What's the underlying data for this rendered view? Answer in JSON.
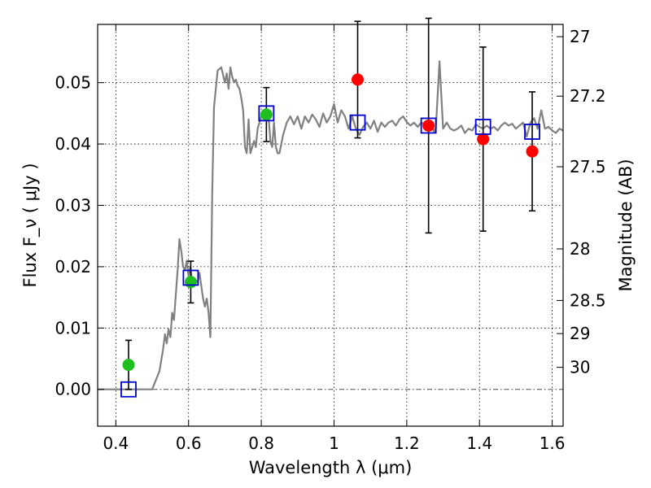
{
  "chart_data": {
    "type": "scatter",
    "xlabel": "Wavelength λ (μm)",
    "ylabel": "Flux F_ν ( μJy )",
    "y2label": "Magnitude (AB)",
    "xlim": [
      0.35,
      1.63
    ],
    "ylim": [
      -0.006,
      0.0595
    ],
    "grid": true,
    "xticks": [
      0.4,
      0.6,
      0.8,
      1,
      1.2,
      1.4,
      1.6
    ],
    "xtick_labels": [
      "0.4",
      "0.6",
      "0.8",
      "1",
      "1.2",
      "1.4",
      "1.6"
    ],
    "yticks": [
      0.0,
      0.01,
      0.02,
      0.03,
      0.04,
      0.05
    ],
    "ytick_labels": [
      "0.00",
      "0.01",
      "0.02",
      "0.03",
      "0.04",
      "0.05"
    ],
    "mag_ticks": [
      {
        "label": "27",
        "flux": 0.0575
      },
      {
        "label": "27.2",
        "flux": 0.0478
      },
      {
        "label": "27.5",
        "flux": 0.0363
      },
      {
        "label": "28",
        "flux": 0.0229
      },
      {
        "label": "28.5",
        "flux": 0.0145
      },
      {
        "label": "29",
        "flux": 0.0091
      },
      {
        "label": "30",
        "flux": 0.0036
      }
    ],
    "sed_model": {
      "color": "#808080",
      "x": [
        0.35,
        0.49,
        0.5,
        0.52,
        0.53,
        0.535,
        0.54,
        0.545,
        0.55,
        0.555,
        0.56,
        0.565,
        0.57,
        0.575,
        0.58,
        0.585,
        0.59,
        0.595,
        0.6,
        0.605,
        0.61,
        0.615,
        0.62,
        0.625,
        0.63,
        0.635,
        0.64,
        0.645,
        0.65,
        0.655,
        0.66,
        0.665,
        0.67,
        0.675,
        0.68,
        0.69,
        0.7,
        0.705,
        0.71,
        0.715,
        0.72,
        0.725,
        0.73,
        0.735,
        0.74,
        0.745,
        0.75,
        0.755,
        0.76,
        0.765,
        0.77,
        0.78,
        0.785,
        0.79,
        0.8,
        0.81,
        0.82,
        0.825,
        0.83,
        0.835,
        0.84,
        0.845,
        0.85,
        0.86,
        0.87,
        0.88,
        0.89,
        0.9,
        0.91,
        0.92,
        0.93,
        0.94,
        0.95,
        0.96,
        0.97,
        0.98,
        0.99,
        1.0,
        1.01,
        1.02,
        1.03,
        1.04,
        1.05,
        1.06,
        1.07,
        1.08,
        1.09,
        1.1,
        1.11,
        1.12,
        1.13,
        1.14,
        1.15,
        1.16,
        1.17,
        1.18,
        1.19,
        1.2,
        1.21,
        1.22,
        1.23,
        1.24,
        1.25,
        1.26,
        1.265,
        1.27,
        1.275,
        1.28,
        1.29,
        1.3,
        1.31,
        1.32,
        1.33,
        1.34,
        1.35,
        1.36,
        1.37,
        1.38,
        1.39,
        1.4,
        1.41,
        1.42,
        1.43,
        1.44,
        1.45,
        1.46,
        1.47,
        1.48,
        1.49,
        1.5,
        1.51,
        1.52,
        1.53,
        1.54,
        1.55,
        1.56,
        1.57,
        1.58,
        1.59,
        1.6,
        1.61,
        1.62,
        1.63
      ],
      "y": [
        0.0,
        0.0,
        0.0,
        0.003,
        0.0065,
        0.009,
        0.0075,
        0.0098,
        0.0085,
        0.0125,
        0.0113,
        0.0155,
        0.0195,
        0.0245,
        0.0225,
        0.02,
        0.0195,
        0.021,
        0.0185,
        0.02,
        0.0175,
        0.0182,
        0.0178,
        0.0175,
        0.019,
        0.0168,
        0.0148,
        0.0135,
        0.0148,
        0.0125,
        0.0085,
        0.032,
        0.046,
        0.049,
        0.052,
        0.0525,
        0.05,
        0.0515,
        0.049,
        0.0525,
        0.051,
        0.05,
        0.0505,
        0.0495,
        0.049,
        0.0475,
        0.0455,
        0.0395,
        0.0385,
        0.044,
        0.0385,
        0.0405,
        0.0395,
        0.0425,
        0.0445,
        0.044,
        0.0445,
        0.0405,
        0.0395,
        0.0435,
        0.0395,
        0.0385,
        0.0385,
        0.0415,
        0.0435,
        0.0445,
        0.0432,
        0.0445,
        0.0425,
        0.0445,
        0.0435,
        0.0448,
        0.044,
        0.0428,
        0.045,
        0.0435,
        0.0445,
        0.0465,
        0.0435,
        0.0455,
        0.0445,
        0.0425,
        0.0445,
        0.0425,
        0.0415,
        0.0428,
        0.0435,
        0.0425,
        0.0438,
        0.042,
        0.0435,
        0.0428,
        0.0435,
        0.0438,
        0.043,
        0.044,
        0.0445,
        0.0436,
        0.043,
        0.0435,
        0.0428,
        0.0435,
        0.0432,
        0.0435,
        0.0432,
        0.0435,
        0.042,
        0.0425,
        0.0535,
        0.0425,
        0.0435,
        0.0425,
        0.0422,
        0.0425,
        0.043,
        0.0418,
        0.0425,
        0.0422,
        0.0432,
        0.0428,
        0.0425,
        0.043,
        0.0425,
        0.0428,
        0.0422,
        0.043,
        0.0435,
        0.043,
        0.0433,
        0.0425,
        0.043,
        0.0435,
        0.0412,
        0.0435,
        0.0442,
        0.0425,
        0.0455,
        0.0425,
        0.0428,
        0.0422,
        0.0418,
        0.0425,
        0.0422
      ]
    },
    "observed_detections": {
      "color": "#1fbf1f",
      "points": [
        {
          "x": 0.435,
          "y": 0.004,
          "yerr": 0.004
        },
        {
          "x": 0.606,
          "y": 0.0175,
          "yerr": 0.0034
        },
        {
          "x": 0.814,
          "y": 0.0448,
          "yerr": 0.0044
        }
      ]
    },
    "observed_upper": {
      "color": "#ff0000",
      "points": [
        {
          "x": 1.065,
          "y": 0.0505,
          "yerr": 0.0095
        },
        {
          "x": 1.26,
          "y": 0.043,
          "yerr": 0.0175
        },
        {
          "x": 1.41,
          "y": 0.0408,
          "yerr": 0.015
        },
        {
          "x": 1.545,
          "y": 0.0388,
          "yerr": 0.0097
        }
      ]
    },
    "model_bands": {
      "color": "#0000cc",
      "points": [
        {
          "x": 0.435,
          "y": 0.0
        },
        {
          "x": 0.606,
          "y": 0.0182
        },
        {
          "x": 0.814,
          "y": 0.045
        },
        {
          "x": 1.065,
          "y": 0.0435
        },
        {
          "x": 1.26,
          "y": 0.043
        },
        {
          "x": 1.41,
          "y": 0.0428
        },
        {
          "x": 1.545,
          "y": 0.042
        }
      ]
    }
  }
}
